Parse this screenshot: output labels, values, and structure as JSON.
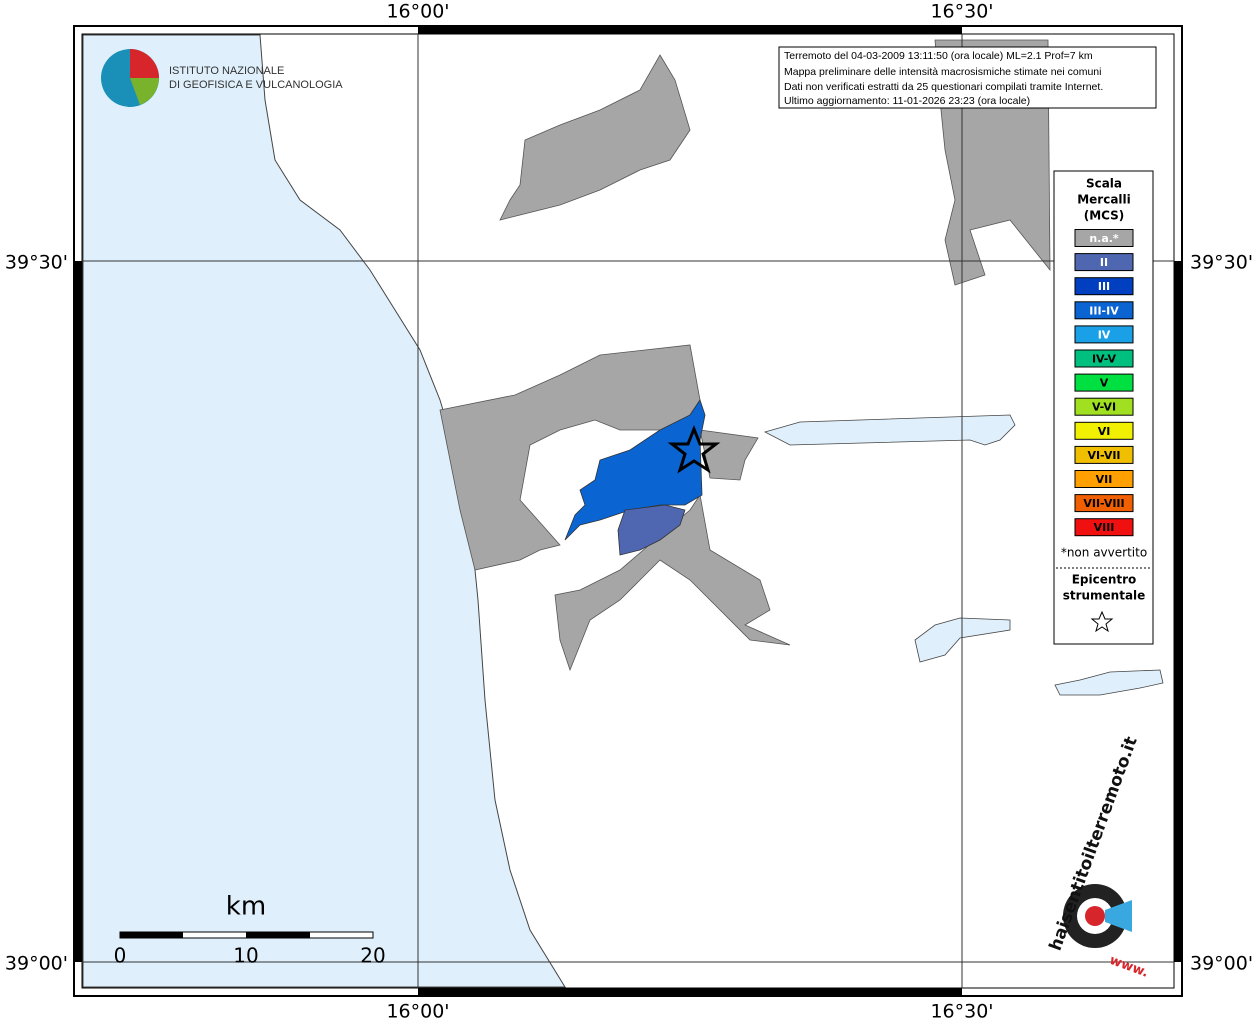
{
  "axes": {
    "lon": [
      "16°00'",
      "16°30'"
    ],
    "lat": [
      "39°30'",
      "39°00'"
    ]
  },
  "institute": [
    "ISTITUTO NAZIONALE",
    "DI GEOFISICA E VULCANOLOGIA"
  ],
  "info": [
    "Terremoto del 04-03-2009 13:11:50 (ora locale) ML=2.1 Prof=7 km",
    "Mappa preliminare delle intensità macrosismiche stimate nei comuni",
    "Dati non verificati estratti da 25 questionari compilati tramite Internet.",
    "Ultimo aggiornamento: 11-01-2026 23:23 (ora locale)"
  ],
  "legend": {
    "title": [
      "Scala",
      "Mercalli",
      "(MCS)"
    ],
    "entries": [
      {
        "label": "n.a.*",
        "color": "#a6a6a6"
      },
      {
        "label": "II",
        "color": "#4f67b0"
      },
      {
        "label": "III",
        "color": "#0040c0"
      },
      {
        "label": "III-IV",
        "color": "#0a64d2"
      },
      {
        "label": "IV",
        "color": "#1aa0e6"
      },
      {
        "label": "IV-V",
        "color": "#00c080"
      },
      {
        "label": "V",
        "color": "#00e040"
      },
      {
        "label": "V-VI",
        "color": "#a0e020"
      },
      {
        "label": "VI",
        "color": "#f0f000"
      },
      {
        "label": "VI-VII",
        "color": "#f0c000"
      },
      {
        "label": "VII",
        "color": "#ffa000"
      },
      {
        "label": "VII-VIII",
        "color": "#f06000"
      },
      {
        "label": "VIII",
        "color": "#f01010"
      }
    ],
    "note": "*non avvertito",
    "epicenter": [
      "Epicentro",
      "strumentale"
    ]
  },
  "scale": {
    "unit": "km",
    "ticks": [
      0,
      10,
      20
    ]
  },
  "site": {
    "prefix": "www.",
    "name": "haisentitoilterremoto.it"
  }
}
